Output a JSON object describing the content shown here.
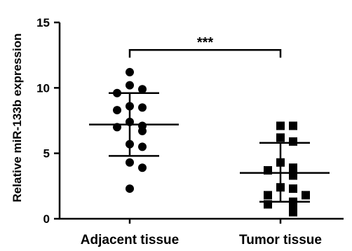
{
  "chart_data": {
    "type": "scatter",
    "ylabel": "Relative miR-133b expression",
    "ylim": [
      0,
      15
    ],
    "yticks": [
      0,
      5,
      10,
      15
    ],
    "categories": [
      "Adjacent tissue",
      "Tumor tissue"
    ],
    "groups": [
      {
        "category": "Adjacent tissue",
        "marker": "circle",
        "mean": 7.2,
        "sd_upper": 9.6,
        "sd_lower": 4.8,
        "values": [
          11.2,
          10.2,
          9.9,
          9.6,
          8.5,
          8.6,
          8.3,
          7.4,
          7.1,
          7.0,
          6.7,
          5.7,
          5.5,
          4.3,
          3.9,
          2.3
        ]
      },
      {
        "category": "Tumor tissue",
        "marker": "square",
        "mean": 3.5,
        "sd_upper": 5.8,
        "sd_lower": 1.3,
        "values": [
          7.1,
          7.1,
          6.2,
          5.9,
          4.3,
          3.9,
          3.7,
          3.3,
          2.4,
          2.3,
          1.8,
          1.8,
          1.3,
          1.1,
          0.9,
          0.5
        ]
      }
    ],
    "significance": {
      "label": "***",
      "between": [
        "Adjacent tissue",
        "Tumor tissue"
      ],
      "at_y": 12.9
    }
  }
}
